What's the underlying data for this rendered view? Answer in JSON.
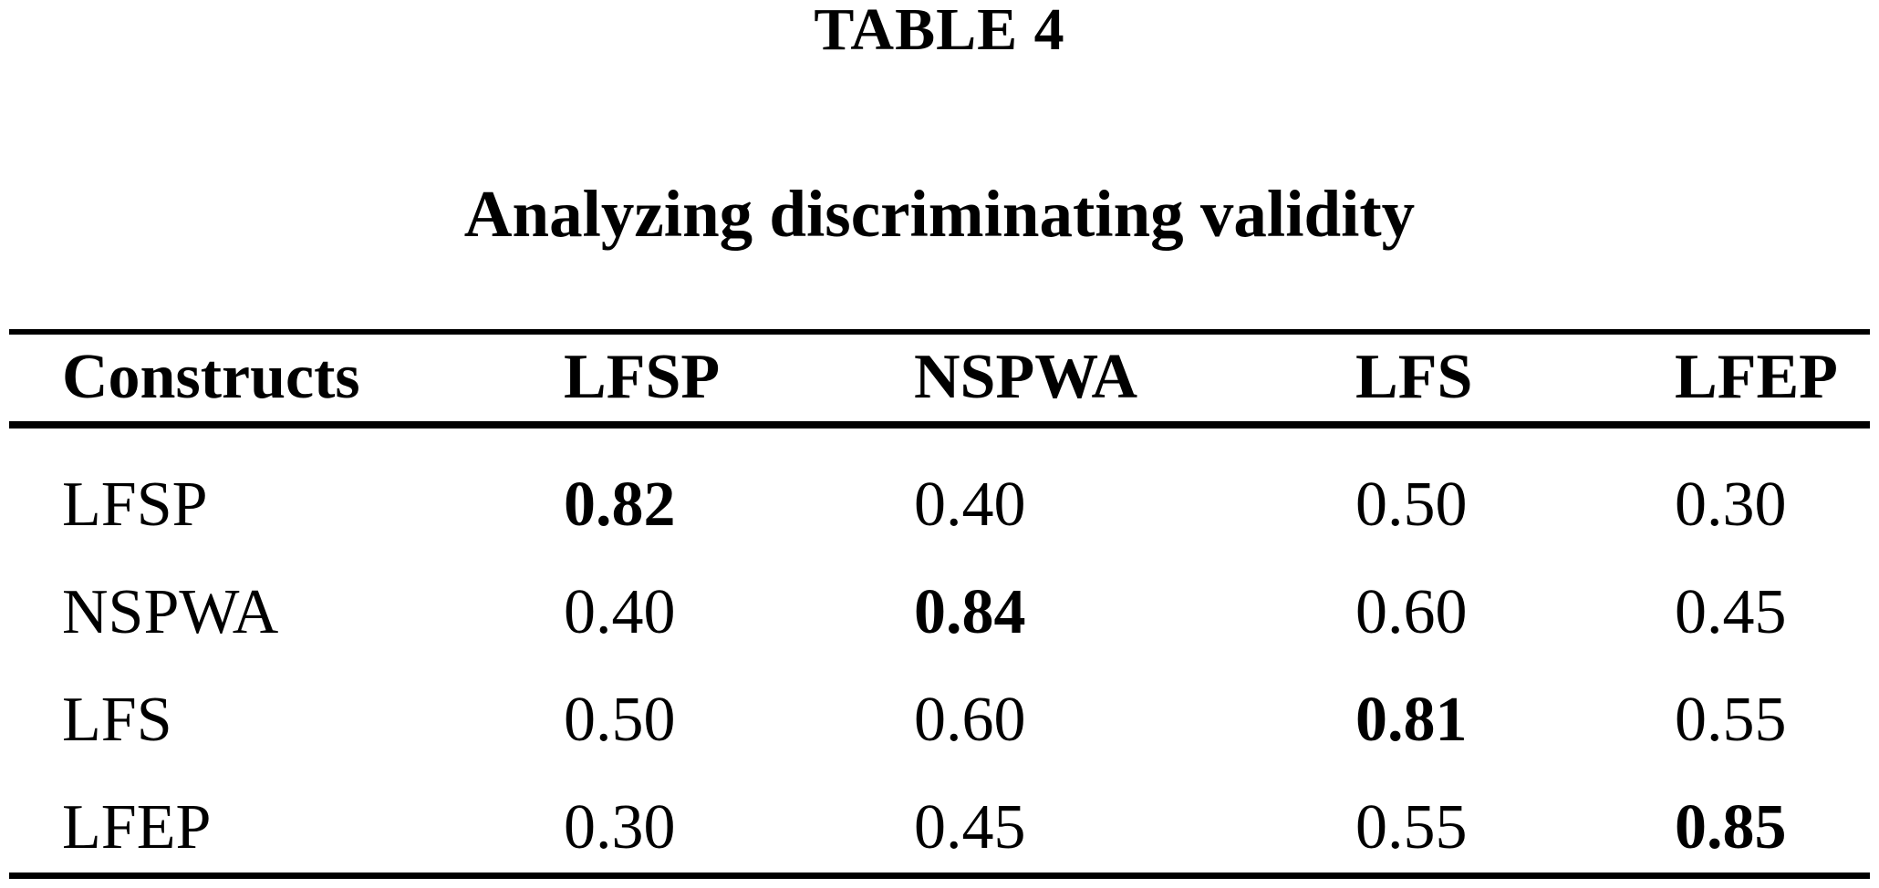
{
  "document": {
    "table_label": "TABLE 4",
    "table_caption": "Analyzing discriminating validity"
  },
  "table": {
    "header": [
      "Constructs",
      "LFSP",
      "NSPWA",
      "LFS",
      "LFEP"
    ],
    "rows": [
      {
        "label": "LFSP",
        "values": [
          "0.82",
          "0.40",
          "0.50",
          "0.30"
        ]
      },
      {
        "label": "NSPWA",
        "values": [
          "0.40",
          "0.84",
          "0.60",
          "0.45"
        ]
      },
      {
        "label": "LFS",
        "values": [
          "0.50",
          "0.60",
          "0.81",
          "0.55"
        ]
      },
      {
        "label": "LFEP",
        "values": [
          "0.30",
          "0.45",
          "0.55",
          "0.85"
        ]
      }
    ]
  },
  "chart_data": {
    "type": "table",
    "title": "TABLE 4",
    "subtitle": "Analyzing discriminating validity",
    "columns": [
      "Constructs",
      "LFSP",
      "NSPWA",
      "LFS",
      "LFEP"
    ],
    "rows": [
      [
        "LFSP",
        0.82,
        0.4,
        0.5,
        0.3
      ],
      [
        "NSPWA",
        0.4,
        0.84,
        0.6,
        0.45
      ],
      [
        "LFS",
        0.5,
        0.6,
        0.81,
        0.55
      ],
      [
        "LFEP",
        0.3,
        0.45,
        0.55,
        0.85
      ]
    ],
    "bold_diagonal_values": [
      0.82,
      0.84,
      0.81,
      0.85
    ]
  },
  "colors": {
    "text": "#000000",
    "background": "#ffffff",
    "rule": "#000000"
  }
}
